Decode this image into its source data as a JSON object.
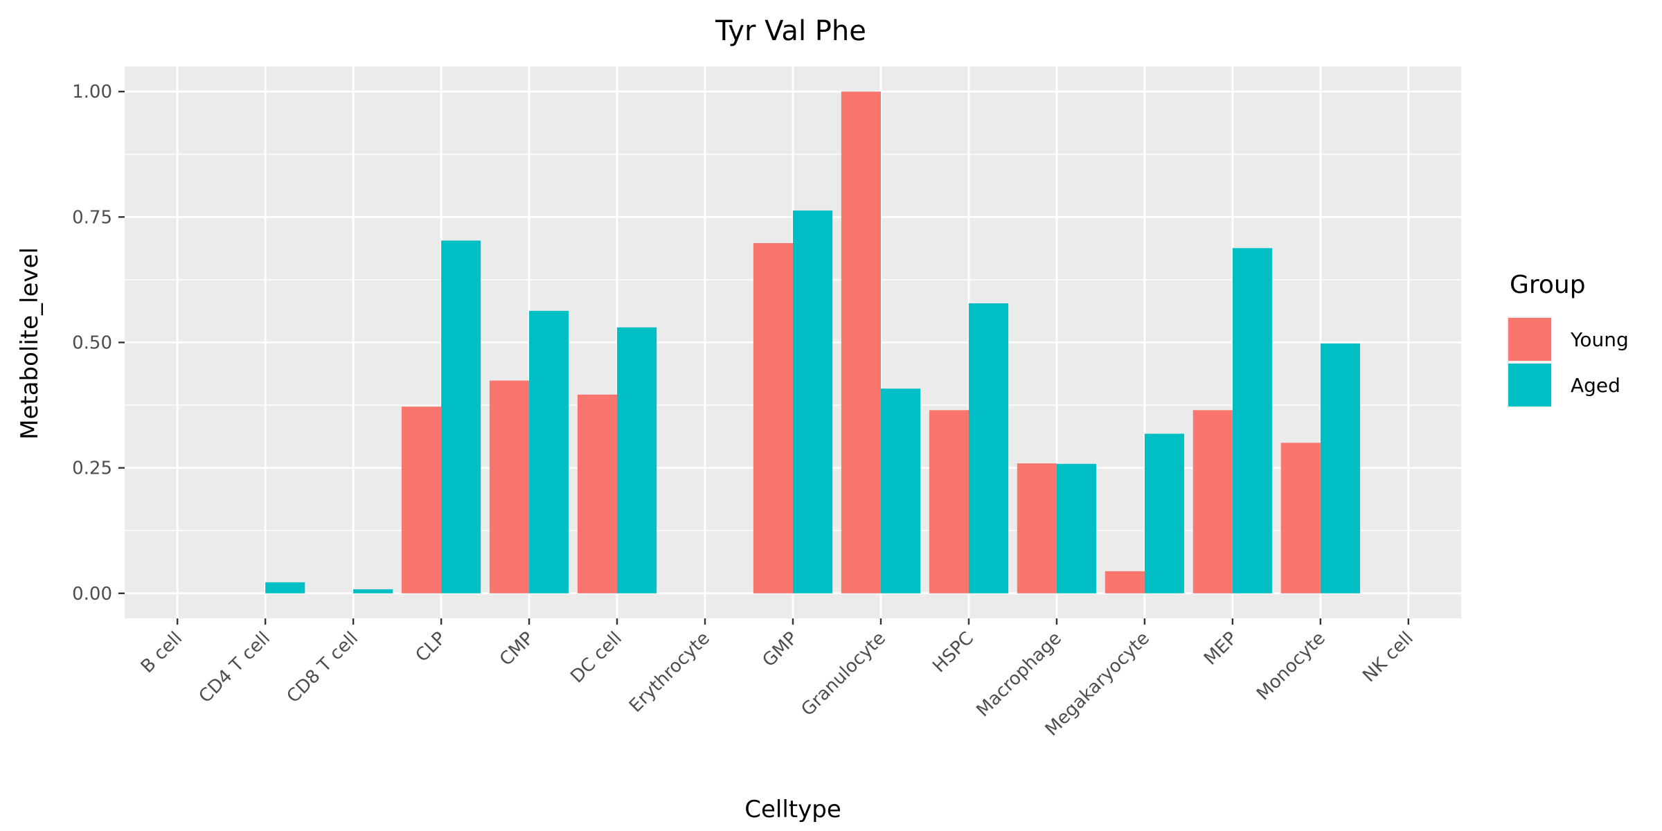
{
  "chart_data": {
    "type": "bar",
    "title": "Tyr Val Phe",
    "xlabel": "Celltype",
    "ylabel": "Metabolite_level",
    "categories": [
      "B cell",
      "CD4 T cell",
      "CD8 T cell",
      "CLP",
      "CMP",
      "DC cell",
      "Erythrocyte",
      "GMP",
      "Granulocyte",
      "HSPC",
      "Macrophage",
      "Megakaryocyte",
      "MEP",
      "Monocyte",
      "NK cell"
    ],
    "series": [
      {
        "name": "Young",
        "color": "#F8766D",
        "values": [
          null,
          null,
          null,
          0.372,
          0.424,
          0.396,
          null,
          0.698,
          1.0,
          0.365,
          0.259,
          0.044,
          0.365,
          0.3,
          null
        ]
      },
      {
        "name": "Aged",
        "color": "#00BFC4",
        "values": [
          null,
          0.022,
          0.008,
          0.703,
          0.563,
          0.53,
          null,
          0.763,
          0.408,
          0.578,
          0.258,
          0.318,
          0.688,
          0.498,
          null
        ]
      }
    ],
    "ylim": [
      -0.05,
      1.05
    ],
    "yticks": [
      0.0,
      0.25,
      0.5,
      0.75,
      1.0
    ],
    "ytick_labels": [
      "0.00",
      "0.25",
      "0.50",
      "0.75",
      "1.00"
    ],
    "grid": true,
    "legend": {
      "title": "Group",
      "position": "right"
    },
    "panel_color": "#EBEBEB",
    "grid_color": "#FFFFFF"
  }
}
